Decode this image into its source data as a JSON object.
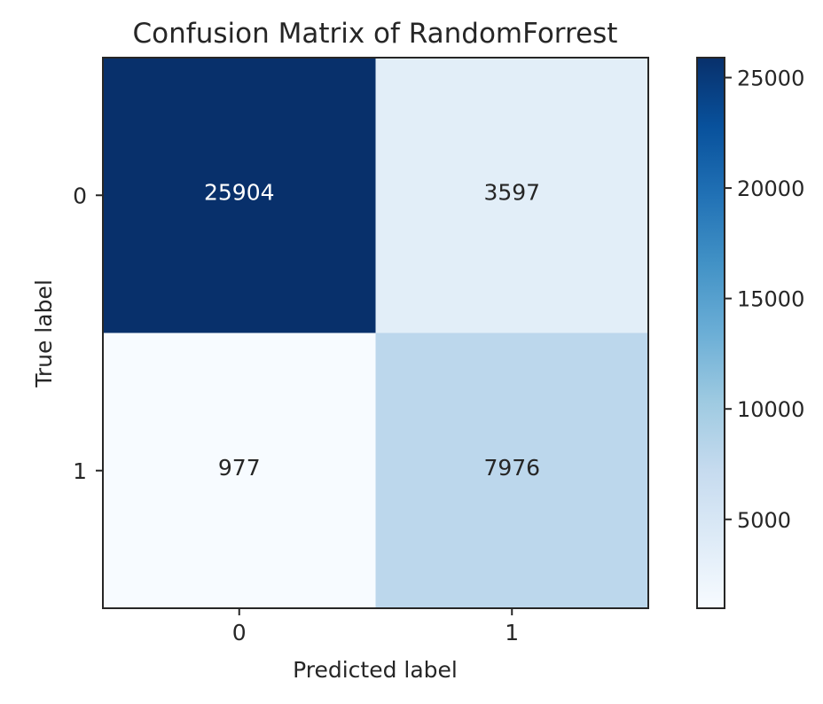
{
  "chart_data": {
    "type": "heatmap",
    "title": "Confusion Matrix of RandomForrest",
    "xlabel": "Predicted label",
    "ylabel": "True label",
    "x_categories": [
      "0",
      "1"
    ],
    "y_categories": [
      "0",
      "1"
    ],
    "values": [
      [
        25904,
        3597
      ],
      [
        977,
        7976
      ]
    ],
    "colormap": "Blues",
    "colorbar": {
      "ticks": [
        5000,
        10000,
        15000,
        20000,
        25000
      ],
      "tick_labels": [
        "5000",
        "10000",
        "15000",
        "20000",
        "25000"
      ],
      "range": [
        977,
        25904
      ]
    },
    "colors": {
      "low": "#f7fbff",
      "high": "#08306b",
      "text_dark": "#262626",
      "text_light": "#ffffff"
    },
    "grid": false
  }
}
